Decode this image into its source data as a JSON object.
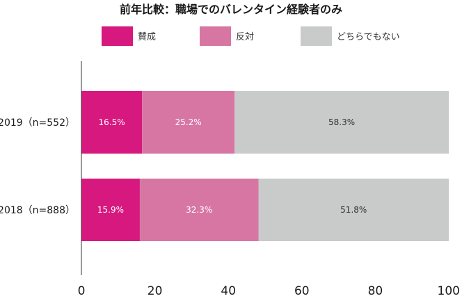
{
  "chart_data": {
    "type": "bar",
    "orientation": "horizontal",
    "stacked": true,
    "title": "前年比較：職場でのバレンタイン経験者のみ",
    "categories": [
      "2019（n=552）",
      "2018（n=888）"
    ],
    "series": [
      {
        "name": "賛成",
        "values": [
          16.5,
          15.9
        ],
        "labels": [
          "16.5%",
          "15.9%"
        ],
        "color": "#d6187f",
        "label_color": "#ffffff"
      },
      {
        "name": "反対",
        "values": [
          25.2,
          32.3
        ],
        "labels": [
          "25.2%",
          "32.3%"
        ],
        "color": "#d776a3",
        "label_color": "#ffffff"
      },
      {
        "name": "どちらでもない",
        "values": [
          58.3,
          51.8
        ],
        "labels": [
          "58.3%",
          "51.8%"
        ],
        "color": "#c9caca",
        "label_color": "#333333"
      }
    ],
    "xlim": [
      0,
      100
    ],
    "xticks": [
      0,
      20,
      40,
      60,
      80,
      100
    ],
    "xtick_labels": [
      "0",
      "20",
      "40",
      "60",
      "80",
      "100"
    ],
    "grid": false,
    "legend_position": "top"
  }
}
